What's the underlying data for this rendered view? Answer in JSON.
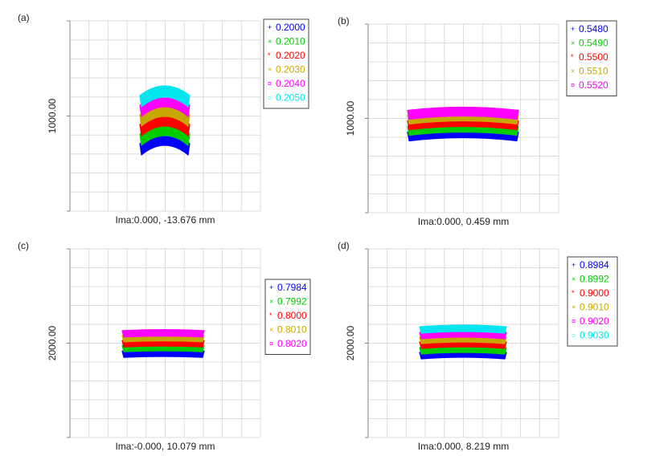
{
  "chart_data": [
    {
      "panel": "(a)",
      "type": "scatter",
      "subtype": "spot-diagram",
      "ylabel": "1000.00",
      "caption": "Ima:0.000, -13.676 mm",
      "series": [
        {
          "name": "0.2000",
          "color": "#0000ff",
          "marker": "+",
          "y_offset": -1.45,
          "halfwidth": 1.55,
          "sag": 0.3
        },
        {
          "name": "0.2010",
          "color": "#00cc00",
          "marker": "×",
          "y_offset": -0.85,
          "halfwidth": 1.55,
          "sag": 0.3
        },
        {
          "name": "0.2020",
          "color": "#ff0000",
          "marker": "*",
          "y_offset": -0.25,
          "halfwidth": 1.55,
          "sag": 0.3
        },
        {
          "name": "0.2030",
          "color": "#c8a800",
          "marker": "×",
          "y_offset": 0.35,
          "halfwidth": 1.55,
          "sag": 0.3
        },
        {
          "name": "0.2040",
          "color": "#ff00ff",
          "marker": "¤",
          "y_offset": 0.95,
          "halfwidth": 1.55,
          "sag": 0.3
        },
        {
          "name": "0.2050",
          "color": "#00e5ee",
          "marker": "○",
          "y_offset": 1.55,
          "halfwidth": 1.55,
          "sag": 0.3
        }
      ]
    },
    {
      "panel": "(b)",
      "type": "scatter",
      "subtype": "spot-diagram",
      "ylabel": "1000.00",
      "caption": "Ima:0.000, 0.459 mm",
      "series": [
        {
          "name": "0.5480",
          "color": "#0000ff",
          "marker": "+",
          "y_offset": -0.8,
          "halfwidth": 3.45,
          "sag": 0.1
        },
        {
          "name": "0.5490",
          "color": "#00cc00",
          "marker": "×",
          "y_offset": -0.45,
          "halfwidth": 3.45,
          "sag": 0.1
        },
        {
          "name": "0.5500",
          "color": "#ff0000",
          "marker": "*",
          "y_offset": -0.1,
          "halfwidth": 3.45,
          "sag": 0.1
        },
        {
          "name": "0.5510",
          "color": "#c8a800",
          "marker": "×",
          "y_offset": 0.25,
          "halfwidth": 3.45,
          "sag": 0.1
        },
        {
          "name": "0.5520",
          "color": "#ff00ff",
          "marker": "¤",
          "y_offset": 0.55,
          "halfwidth": 3.45,
          "sag": 0.1
        }
      ]
    },
    {
      "panel": "(c)",
      "type": "scatter",
      "subtype": "spot-diagram",
      "ylabel": "2000.00",
      "caption": "Ima:-0.000, 10.079 mm",
      "series": [
        {
          "name": "0.7984",
          "color": "#0000ff",
          "marker": "+",
          "y_offset": -0.65,
          "halfwidth": 2.55,
          "sag": 0.03
        },
        {
          "name": "0.7992",
          "color": "#00cc00",
          "marker": "×",
          "y_offset": -0.3,
          "halfwidth": 2.55,
          "sag": 0.03
        },
        {
          "name": "0.8000",
          "color": "#ff0000",
          "marker": "*",
          "y_offset": 0.0,
          "halfwidth": 2.55,
          "sag": 0.03
        },
        {
          "name": "0.8010",
          "color": "#c8a800",
          "marker": "×",
          "y_offset": 0.32,
          "halfwidth": 2.55,
          "sag": 0.03
        },
        {
          "name": "0.8020",
          "color": "#ff00ff",
          "marker": "¤",
          "y_offset": 0.62,
          "halfwidth": 2.55,
          "sag": 0.03
        }
      ]
    },
    {
      "panel": "(d)",
      "type": "scatter",
      "subtype": "spot-diagram",
      "ylabel": "2000.00",
      "caption": "Ima:0.000, 8.219 mm",
      "series": [
        {
          "name": "0.8984",
          "color": "#0000ff",
          "marker": "+",
          "y_offset": -0.75,
          "halfwidth": 2.7,
          "sag": 0.05
        },
        {
          "name": "0.8992",
          "color": "#00cc00",
          "marker": "×",
          "y_offset": -0.45,
          "halfwidth": 2.7,
          "sag": 0.05
        },
        {
          "name": "0.9000",
          "color": "#ff0000",
          "marker": "*",
          "y_offset": -0.1,
          "halfwidth": 2.7,
          "sag": 0.05
        },
        {
          "name": "0.9010",
          "color": "#c8a800",
          "marker": "×",
          "y_offset": 0.2,
          "halfwidth": 2.7,
          "sag": 0.05
        },
        {
          "name": "0.9020",
          "color": "#ff00ff",
          "marker": "¤",
          "y_offset": 0.5,
          "halfwidth": 2.7,
          "sag": 0.05
        },
        {
          "name": "0.9030",
          "color": "#00e5ee",
          "marker": "○",
          "y_offset": 0.85,
          "halfwidth": 2.7,
          "sag": 0.05
        }
      ]
    }
  ]
}
